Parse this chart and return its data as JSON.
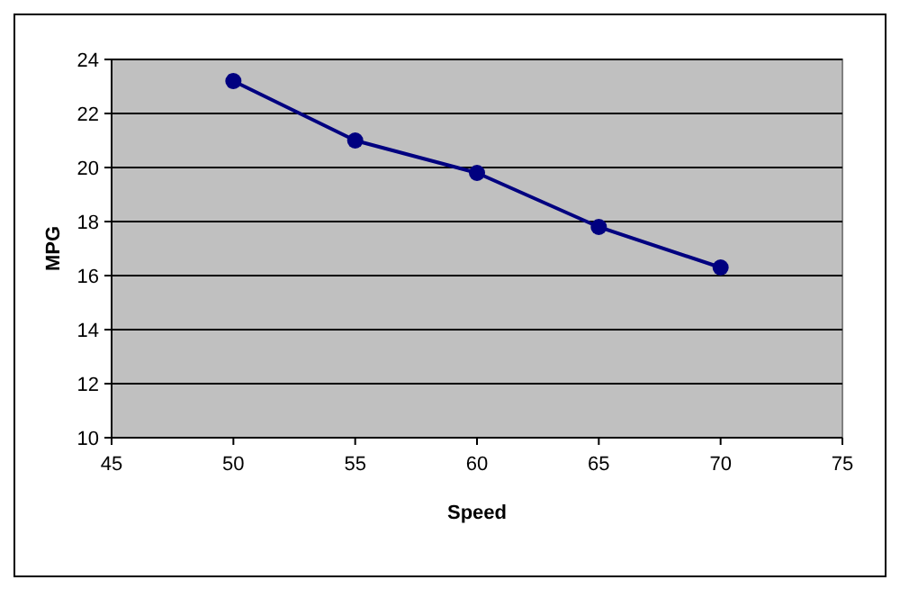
{
  "chart_data": {
    "type": "line",
    "xlabel": "Speed",
    "ylabel": "MPG",
    "x": [
      50,
      55,
      60,
      65,
      70
    ],
    "series": [
      {
        "color": "#000080",
        "values": [
          23.2,
          21.0,
          19.8,
          17.8,
          16.3
        ]
      }
    ],
    "xlim": [
      45,
      75
    ],
    "xticks": [
      45,
      50,
      55,
      60,
      65,
      70,
      75
    ],
    "ylim": [
      10,
      24
    ],
    "yticks": [
      10,
      12,
      14,
      16,
      18,
      20,
      22,
      24
    ],
    "grid": "y",
    "marker": "circle",
    "line_style": "solid"
  }
}
